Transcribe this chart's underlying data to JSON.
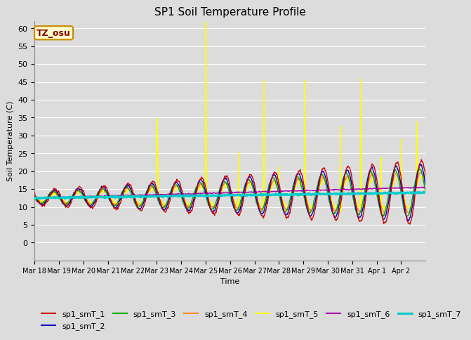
{
  "title": "SP1 Soil Temperature Profile",
  "xlabel": "Time",
  "ylabel": "Soil Temperature (C)",
  "ylim": [
    -5,
    62
  ],
  "yticks": [
    0,
    5,
    10,
    15,
    20,
    25,
    30,
    35,
    40,
    45,
    50,
    55,
    60
  ],
  "bg_color": "#dcdcdc",
  "series_colors": {
    "sp1_smT_1": "#cc0000",
    "sp1_smT_2": "#0000cc",
    "sp1_smT_3": "#00aa00",
    "sp1_smT_4": "#ff8800",
    "sp1_smT_5": "#ffff00",
    "sp1_smT_6": "#aa00aa",
    "sp1_smT_7": "#00cccc"
  },
  "series_linewidths": {
    "sp1_smT_1": 1.0,
    "sp1_smT_2": 1.0,
    "sp1_smT_3": 1.0,
    "sp1_smT_4": 1.0,
    "sp1_smT_5": 1.0,
    "sp1_smT_6": 1.0,
    "sp1_smT_7": 2.2
  },
  "tz_label": "TZ_osu",
  "tz_bg": "#ffffcc",
  "tz_border": "#cc8800",
  "tz_text_color": "#880000",
  "x_tick_labels": [
    "Mar 18",
    "Mar 19",
    "Mar 20",
    "Mar 21",
    "Mar 22",
    "Mar 23",
    "Mar 24",
    "Mar 25",
    "Mar 26",
    "Mar 27",
    "Mar 28",
    "Mar 29",
    "Mar 30",
    "Mar 31",
    "Apr 1",
    "Apr 2"
  ],
  "legend_names": [
    "sp1_smT_1",
    "sp1_smT_2",
    "sp1_smT_3",
    "sp1_smT_4",
    "sp1_smT_5",
    "sp1_smT_6",
    "sp1_smT_7"
  ]
}
